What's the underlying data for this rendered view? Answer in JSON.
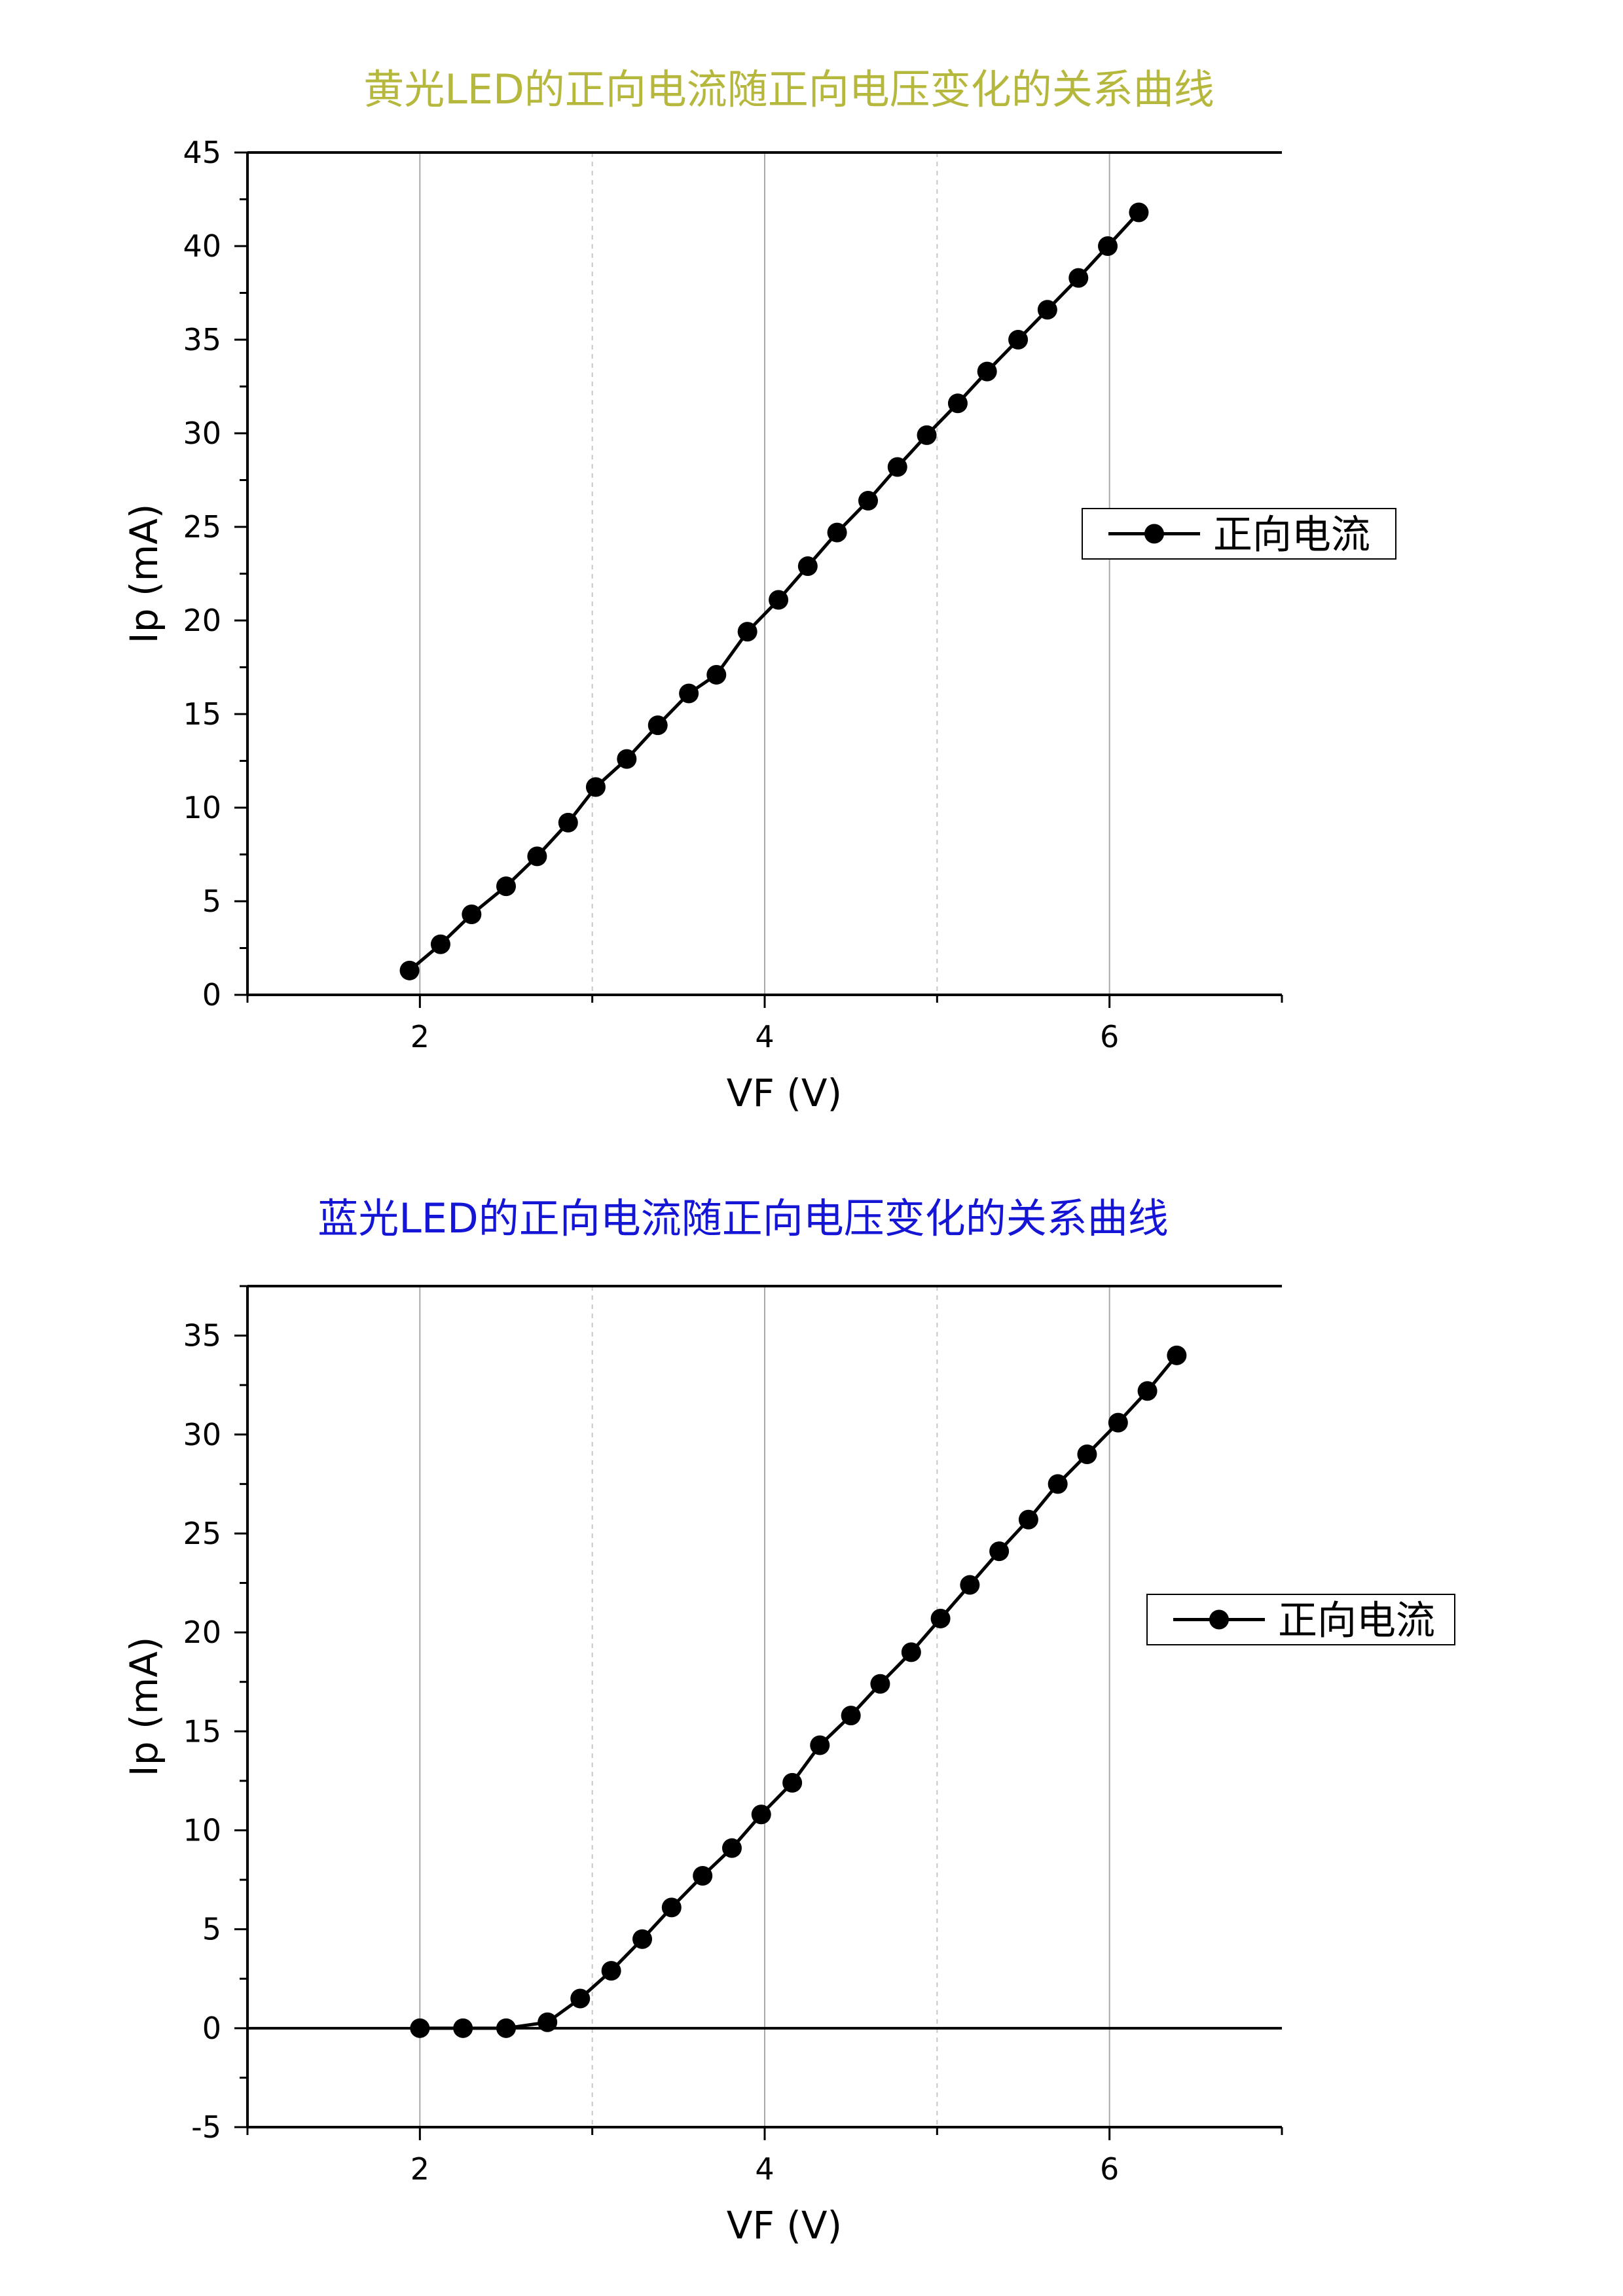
{
  "chart_data": [
    {
      "type": "line",
      "title": "黄光LED的正向电流随正向电压变化的关系曲线",
      "title_color": "#b5b83c",
      "xlabel": "VF (V)",
      "ylabel": "Ip (mA)",
      "xlim": [
        1,
        7
      ],
      "ylim": [
        0,
        45
      ],
      "xticks": [
        2,
        4,
        6
      ],
      "yticks": [
        0,
        5,
        10,
        15,
        20,
        25,
        30,
        35,
        40,
        45
      ],
      "legend_position": "right",
      "zero_line": false,
      "series": [
        {
          "name": "正向电流",
          "color": "#000000",
          "x": [
            1.94,
            2.12,
            2.3,
            2.5,
            2.68,
            2.86,
            3.02,
            3.2,
            3.38,
            3.56,
            3.72,
            3.9,
            4.08,
            4.25,
            4.42,
            4.6,
            4.77,
            4.94,
            5.12,
            5.29,
            5.47,
            5.64,
            5.82,
            5.99,
            6.17
          ],
          "y": [
            1.3,
            2.7,
            4.3,
            5.8,
            7.4,
            9.2,
            11.1,
            12.6,
            14.4,
            16.1,
            17.1,
            19.4,
            21.1,
            22.9,
            24.7,
            26.4,
            28.2,
            29.9,
            31.6,
            33.3,
            35.0,
            36.6,
            38.3,
            40.0,
            41.8
          ]
        }
      ]
    },
    {
      "type": "line",
      "title": "蓝光LED的正向电流随正向电压变化的关系曲线",
      "title_color": "#1515d6",
      "xlabel": "VF (V)",
      "ylabel": "Ip (mA)",
      "xlim": [
        1,
        7
      ],
      "ylim": [
        -5,
        37.5
      ],
      "xticks": [
        2,
        4,
        6
      ],
      "yticks": [
        -5,
        0,
        5,
        10,
        15,
        20,
        25,
        30,
        35
      ],
      "legend_position": "right",
      "zero_line": true,
      "series": [
        {
          "name": "正向电流",
          "color": "#000000",
          "x": [
            2.0,
            2.25,
            2.5,
            2.74,
            2.93,
            3.11,
            3.29,
            3.46,
            3.64,
            3.81,
            3.98,
            4.16,
            4.32,
            4.5,
            4.67,
            4.85,
            5.02,
            5.19,
            5.36,
            5.53,
            5.7,
            5.87,
            6.05,
            6.22,
            6.39
          ],
          "y": [
            0.0,
            0.0,
            0.0,
            0.3,
            1.5,
            2.9,
            4.5,
            6.1,
            7.7,
            9.1,
            10.8,
            12.4,
            14.3,
            15.8,
            17.4,
            19.0,
            20.7,
            22.4,
            24.1,
            25.7,
            27.5,
            29.0,
            30.6,
            32.2,
            34.0
          ]
        }
      ]
    }
  ]
}
